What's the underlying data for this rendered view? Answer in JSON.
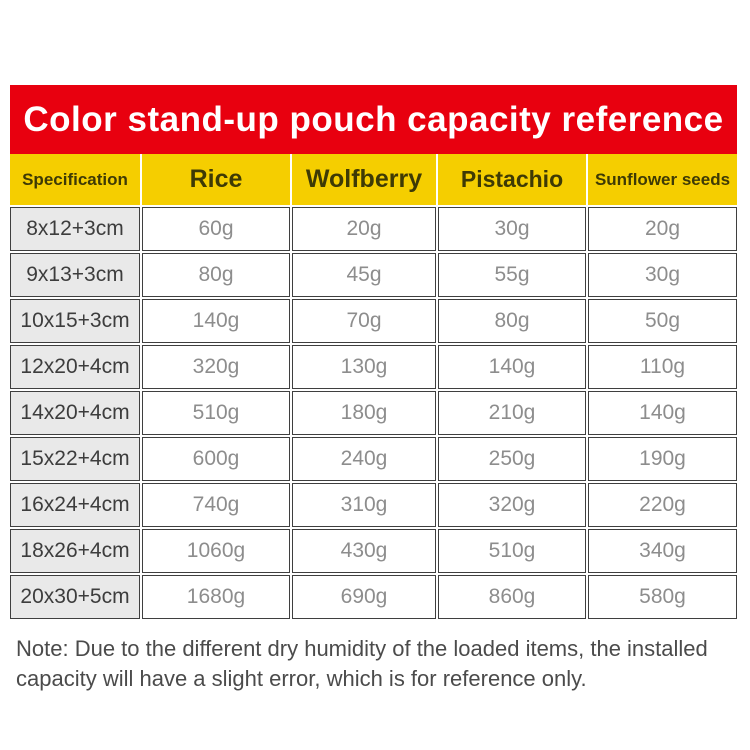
{
  "title": "Color stand-up pouch capacity reference",
  "colors": {
    "banner_red": "#e8000f",
    "header_yellow": "#f5ce00",
    "header_text": "#3e3a05",
    "spec_cell_bg": "#e9e9e9",
    "spec_text": "#3d3d3d",
    "value_text": "#8d8d8d",
    "cell_border": "#3f3f3f",
    "note_text": "#4b4b4b"
  },
  "table": {
    "columns": [
      "Specification",
      "Rice",
      "Wolfberry",
      "Pistachio",
      "Sunflower seeds"
    ],
    "rows": [
      {
        "spec": "8x12+3cm",
        "values": [
          "60g",
          "20g",
          "30g",
          "20g"
        ]
      },
      {
        "spec": "9x13+3cm",
        "values": [
          "80g",
          "45g",
          "55g",
          "30g"
        ]
      },
      {
        "spec": "10x15+3cm",
        "values": [
          "140g",
          "70g",
          "80g",
          "50g"
        ]
      },
      {
        "spec": "12x20+4cm",
        "values": [
          "320g",
          "130g",
          "140g",
          "110g"
        ]
      },
      {
        "spec": "14x20+4cm",
        "values": [
          "510g",
          "180g",
          "210g",
          "140g"
        ]
      },
      {
        "spec": "15x22+4cm",
        "values": [
          "600g",
          "240g",
          "250g",
          "190g"
        ]
      },
      {
        "spec": "16x24+4cm",
        "values": [
          "740g",
          "310g",
          "320g",
          "220g"
        ]
      },
      {
        "spec": "18x26+4cm",
        "values": [
          "1060g",
          "430g",
          "510g",
          "340g"
        ]
      },
      {
        "spec": "20x30+5cm",
        "values": [
          "1680g",
          "690g",
          "860g",
          "580g"
        ]
      }
    ]
  },
  "note": {
    "text": "Note: Due to the different dry humidity of the loaded items, the installed capacity will have a slight error, which is for reference only."
  },
  "chart_data": {
    "type": "table",
    "title": "Color stand-up pouch capacity reference",
    "columns": [
      "Specification",
      "Rice",
      "Wolfberry",
      "Pistachio",
      "Sunflower seeds"
    ],
    "rows": [
      [
        "8x12+3cm",
        "60g",
        "20g",
        "30g",
        "20g"
      ],
      [
        "9x13+3cm",
        "80g",
        "45g",
        "55g",
        "30g"
      ],
      [
        "10x15+3cm",
        "140g",
        "70g",
        "80g",
        "50g"
      ],
      [
        "12x20+4cm",
        "320g",
        "130g",
        "140g",
        "110g"
      ],
      [
        "14x20+4cm",
        "510g",
        "180g",
        "210g",
        "140g"
      ],
      [
        "15x22+4cm",
        "600g",
        "240g",
        "250g",
        "190g"
      ],
      [
        "16x24+4cm",
        "740g",
        "310g",
        "320g",
        "220g"
      ],
      [
        "18x26+4cm",
        "1060g",
        "430g",
        "510g",
        "340g"
      ],
      [
        "20x30+5cm",
        "1680g",
        "690g",
        "860g",
        "580g"
      ]
    ],
    "unit": "g",
    "note": "Note: Due to the different dry humidity of the loaded items, the installed capacity will have a slight error, which is for reference only."
  }
}
